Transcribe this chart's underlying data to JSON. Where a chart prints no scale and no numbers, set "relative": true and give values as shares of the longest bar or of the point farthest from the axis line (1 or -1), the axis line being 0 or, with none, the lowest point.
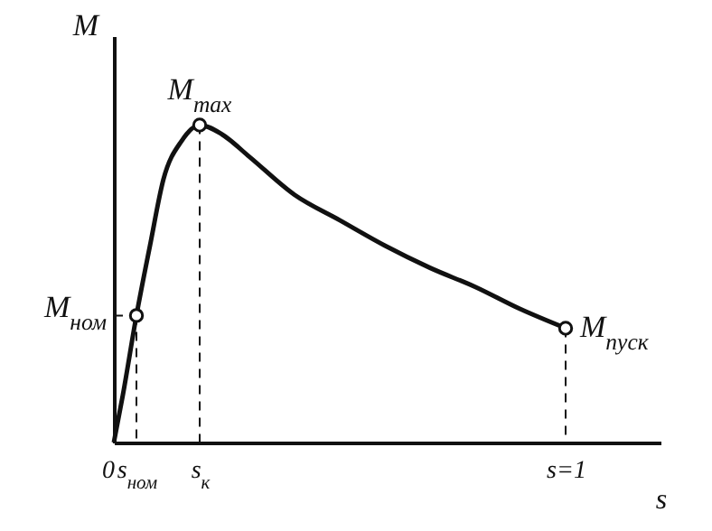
{
  "chart_data": {
    "type": "line",
    "relative": true,
    "xlabel": "s",
    "ylabel": "M",
    "xlim": [
      0,
      1.21
    ],
    "xticks": [
      0,
      {
        "value": 0.05,
        "label": "s$_{ном}$"
      },
      {
        "value": 0.19,
        "label": "s$_{к}$"
      },
      {
        "value": 1,
        "label": "s=1"
      }
    ],
    "series": [
      {
        "type": "line",
        "color": "#111111",
        "line_style": "solid",
        "marker": "none",
        "x": [
          0,
          0.02,
          0.05,
          0.08,
          0.11,
          0.15,
          0.19,
          0.24,
          0.3,
          0.4,
          0.5,
          0.6,
          0.7,
          0.8,
          0.9,
          1
        ],
        "values": [
          0,
          0.15,
          0.4,
          0.62,
          0.83,
          0.95,
          1,
          0.97,
          0.9,
          0.78,
          0.7,
          0.62,
          0.55,
          0.49,
          0.42,
          0.36
        ]
      },
      {
        "type": "scatter",
        "color": "#111111",
        "marker": "circle",
        "x": [
          0.05,
          0.19,
          1
        ],
        "values": [
          0.4,
          1,
          0.36
        ]
      }
    ],
    "annotations": [
      {
        "text": "M$_{ном}$",
        "x": 0.05,
        "y": 0.4
      },
      {
        "text": "M$_{max}$",
        "x": 0.19,
        "y": 1
      },
      {
        "text": "M$_{пуск}$",
        "x": 1,
        "y": 0.36
      }
    ]
  }
}
